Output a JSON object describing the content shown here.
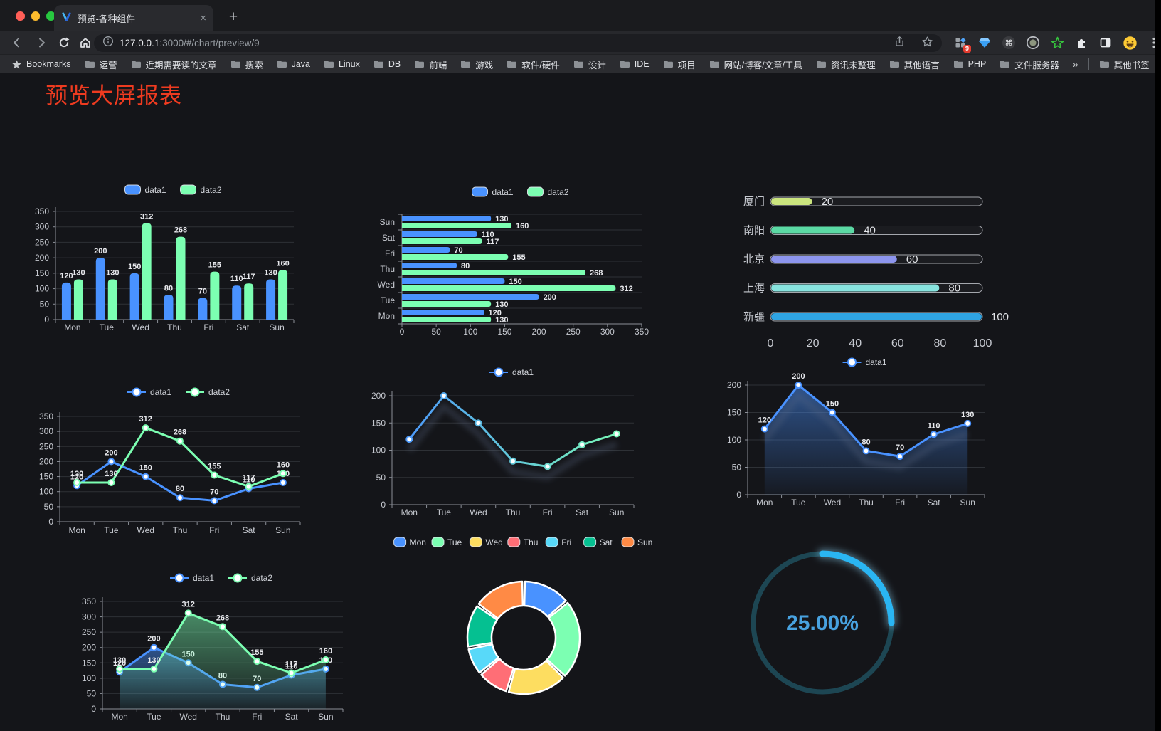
{
  "browser": {
    "window_controls": {
      "close_color": "#ff5f57",
      "minimize_color": "#febc2e",
      "zoom_color": "#28c840"
    },
    "tab": {
      "title": "预览-各种组件",
      "close_label": "×",
      "new_tab_label": "+"
    },
    "url": {
      "host": "127.0.0.1",
      "rest": ":3000/#/chart/preview/9"
    },
    "extensions_badge": "9",
    "extension_icons": [
      "extensions-grid",
      "gem",
      "command",
      "screen-record",
      "green-star",
      "puzzle",
      "split-view",
      "emoji-avatar",
      "menu-dots"
    ],
    "bookmarks_title": "Bookmarks",
    "bookmark_folders": [
      "运营",
      "近期需要读的文章",
      "搜索",
      "Java",
      "Linux",
      "DB",
      "前端",
      "游戏",
      "软件/硬件",
      "设计",
      "IDE",
      "项目",
      "网站/博客/文章/工具",
      "资讯未整理",
      "其他语言",
      "PHP",
      "文件服务器"
    ],
    "overflow_chevron": "»",
    "other_bookmarks": "其他书签"
  },
  "page": {
    "title": "预览大屏报表",
    "title_color": "#ee3b20"
  },
  "chart_data": [
    {
      "id": "grouped-bar",
      "type": "bar",
      "categories": [
        "Mon",
        "Tue",
        "Wed",
        "Thu",
        "Fri",
        "Sat",
        "Sun"
      ],
      "series": [
        {
          "name": "data1",
          "color": "#4992ff",
          "values": [
            120,
            200,
            150,
            80,
            70,
            110,
            130
          ]
        },
        {
          "name": "data2",
          "color": "#7cffb2",
          "values": [
            130,
            130,
            312,
            268,
            155,
            117,
            160
          ]
        }
      ],
      "ylim": [
        0,
        350
      ],
      "ytick": 50,
      "labels": true,
      "legend_position": "top",
      "grid": true
    },
    {
      "id": "horizontal-bar",
      "type": "bar-horizontal",
      "categories": [
        "Mon",
        "Tue",
        "Wed",
        "Thu",
        "Fri",
        "Sat",
        "Sun"
      ],
      "series": [
        {
          "name": "data1",
          "color": "#4992ff",
          "values": [
            120,
            200,
            150,
            80,
            70,
            110,
            130
          ]
        },
        {
          "name": "data2",
          "color": "#7cffb2",
          "values": [
            130,
            130,
            312,
            268,
            155,
            117,
            160
          ]
        }
      ],
      "xlim": [
        0,
        350
      ],
      "xtick": 50,
      "labels": true,
      "legend_position": "top"
    },
    {
      "id": "capsule-progress",
      "type": "bar-horizontal",
      "categories": [
        "厦门",
        "南阳",
        "北京",
        "上海",
        "新疆"
      ],
      "values": [
        20,
        40,
        60,
        80,
        100
      ],
      "colors": [
        "#cbe57e",
        "#5bd9a4",
        "#8d95ee",
        "#87e3de",
        "#2fa4e3"
      ],
      "xlim": [
        0,
        100
      ],
      "xticks": [
        0,
        20,
        40,
        60,
        80,
        100
      ],
      "labels": true
    },
    {
      "id": "two-line",
      "type": "line",
      "categories": [
        "Mon",
        "Tue",
        "Wed",
        "Thu",
        "Fri",
        "Sat",
        "Sun"
      ],
      "series": [
        {
          "name": "data1",
          "color": "#4992ff",
          "values": [
            120,
            200,
            150,
            80,
            70,
            110,
            130
          ]
        },
        {
          "name": "data2",
          "color": "#7cffb2",
          "values": [
            130,
            130,
            312,
            268,
            155,
            117,
            160
          ]
        }
      ],
      "ylim": [
        0,
        350
      ],
      "ytick": 50,
      "labels": true,
      "legend_position": "top"
    },
    {
      "id": "gradient-line",
      "type": "line",
      "categories": [
        "Mon",
        "Tue",
        "Wed",
        "Thu",
        "Fri",
        "Sat",
        "Sun"
      ],
      "series": [
        {
          "name": "data1",
          "gradient": [
            "#4992ff",
            "#7cffb2"
          ],
          "values": [
            120,
            200,
            150,
            80,
            70,
            110,
            130
          ]
        }
      ],
      "ylim": [
        0,
        200
      ],
      "ytick": 50,
      "labels": false,
      "shadow": true,
      "legend_position": "top"
    },
    {
      "id": "area-line",
      "type": "area",
      "categories": [
        "Mon",
        "Tue",
        "Wed",
        "Thu",
        "Fri",
        "Sat",
        "Sun"
      ],
      "series": [
        {
          "name": "data1",
          "color": "#4992ff",
          "values": [
            120,
            200,
            150,
            80,
            70,
            110,
            130
          ],
          "area": true
        }
      ],
      "ylim": [
        0,
        200
      ],
      "ytick": 50,
      "labels": true,
      "shadow": true,
      "legend_position": "top"
    },
    {
      "id": "two-area-line",
      "type": "area",
      "categories": [
        "Mon",
        "Tue",
        "Wed",
        "Thu",
        "Fri",
        "Sat",
        "Sun"
      ],
      "series": [
        {
          "name": "data1",
          "color": "#4992ff",
          "values": [
            120,
            200,
            150,
            80,
            70,
            110,
            130
          ],
          "area": true
        },
        {
          "name": "data2",
          "color": "#7cffb2",
          "values": [
            130,
            130,
            312,
            268,
            155,
            117,
            160
          ],
          "area": true
        }
      ],
      "ylim": [
        0,
        350
      ],
      "ytick": 50,
      "labels": true,
      "legend_position": "top"
    },
    {
      "id": "donut",
      "type": "pie",
      "categories": [
        "Mon",
        "Tue",
        "Wed",
        "Thu",
        "Fri",
        "Sat",
        "Sun"
      ],
      "values": [
        120,
        200,
        150,
        80,
        70,
        110,
        130
      ],
      "colors": [
        "#4992ff",
        "#7cffb2",
        "#fddd60",
        "#ff6e76",
        "#58d9f9",
        "#05c091",
        "#ff8a45"
      ],
      "legend_position": "top"
    },
    {
      "id": "progress-gauge",
      "type": "gauge",
      "value": 25,
      "display": "25.00%",
      "color": "#2ab5f2",
      "track_color": "#1d4653",
      "text_color": "#48a2e0"
    }
  ]
}
